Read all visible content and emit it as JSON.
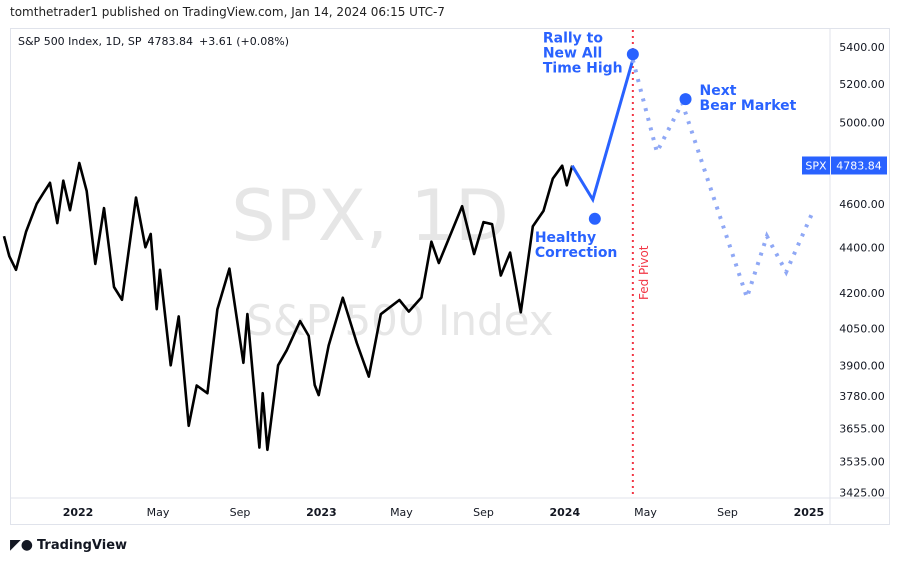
{
  "header": {
    "published": "tomthetrader1 published on TradingView.com, Jan 14, 2024 06:15 UTC-7"
  },
  "legend": {
    "name": "S&P 500 Index, 1D, SP",
    "price": "4783.84",
    "change": "+3.61 (+0.08%)"
  },
  "watermark": {
    "symbol": "SPX, 1D",
    "description": "S&P 500 Index"
  },
  "footer": {
    "brand": "TradingView"
  },
  "colors": {
    "price": "#000000",
    "projection": "#2962ff",
    "forecast": "#8fa8f5",
    "pivot": "#f23645",
    "label_bg": "#2962ff"
  },
  "chart_data": {
    "type": "line",
    "scale": "log",
    "ylim": [
      3380,
      5560
    ],
    "y_ticks": [
      "5400.00",
      "5200.00",
      "5000.00",
      "4600.00",
      "4400.00",
      "4200.00",
      "4050.00",
      "3900.00",
      "3780.00",
      "3655.00",
      "3535.00",
      "3425.00"
    ],
    "x_ticks": [
      {
        "label": "2022",
        "date": "2022-01-01"
      },
      {
        "label": "May",
        "date": "2022-05-01"
      },
      {
        "label": "Sep",
        "date": "2022-09-01"
      },
      {
        "label": "2023",
        "date": "2023-01-01"
      },
      {
        "label": "May",
        "date": "2023-05-01"
      },
      {
        "label": "Sep",
        "date": "2023-09-01"
      },
      {
        "label": "2024",
        "date": "2024-01-01"
      },
      {
        "label": "May",
        "date": "2024-05-01"
      },
      {
        "label": "Sep",
        "date": "2024-09-01"
      },
      {
        "label": "2025",
        "date": "2025-01-01"
      }
    ],
    "last_price_label": {
      "symbol": "SPX",
      "value": "4783.84",
      "price": 4783.84
    },
    "price_series": [
      [
        "2021-09-12",
        4450
      ],
      [
        "2021-09-20",
        4360
      ],
      [
        "2021-09-30",
        4300
      ],
      [
        "2021-10-15",
        4470
      ],
      [
        "2021-10-31",
        4600
      ],
      [
        "2021-11-10",
        4650
      ],
      [
        "2021-11-20",
        4700
      ],
      [
        "2021-12-01",
        4510
      ],
      [
        "2021-12-10",
        4710
      ],
      [
        "2021-12-20",
        4570
      ],
      [
        "2022-01-03",
        4796
      ],
      [
        "2022-01-14",
        4660
      ],
      [
        "2022-01-27",
        4326
      ],
      [
        "2022-02-09",
        4580
      ],
      [
        "2022-02-24",
        4225
      ],
      [
        "2022-03-08",
        4170
      ],
      [
        "2022-03-29",
        4630
      ],
      [
        "2022-04-12",
        4400
      ],
      [
        "2022-04-20",
        4460
      ],
      [
        "2022-04-29",
        4130
      ],
      [
        "2022-05-04",
        4300
      ],
      [
        "2022-05-20",
        3900
      ],
      [
        "2022-06-01",
        4100
      ],
      [
        "2022-06-16",
        3666
      ],
      [
        "2022-06-28",
        3820
      ],
      [
        "2022-07-14",
        3790
      ],
      [
        "2022-07-29",
        4130
      ],
      [
        "2022-08-16",
        4305
      ],
      [
        "2022-09-06",
        3910
      ],
      [
        "2022-09-12",
        4110
      ],
      [
        "2022-09-30",
        3585
      ],
      [
        "2022-10-05",
        3790
      ],
      [
        "2022-10-12",
        3577
      ],
      [
        "2022-10-28",
        3900
      ],
      [
        "2022-11-10",
        3960
      ],
      [
        "2022-11-30",
        4080
      ],
      [
        "2022-12-13",
        4019
      ],
      [
        "2022-12-22",
        3822
      ],
      [
        "2022-12-28",
        3783
      ],
      [
        "2023-01-12",
        3980
      ],
      [
        "2023-02-02",
        4179
      ],
      [
        "2023-02-23",
        3990
      ],
      [
        "2023-03-13",
        3855
      ],
      [
        "2023-03-31",
        4109
      ],
      [
        "2023-04-28",
        4169
      ],
      [
        "2023-05-12",
        4120
      ],
      [
        "2023-05-31",
        4180
      ],
      [
        "2023-06-15",
        4425
      ],
      [
        "2023-06-26",
        4330
      ],
      [
        "2023-07-31",
        4589
      ],
      [
        "2023-08-18",
        4370
      ],
      [
        "2023-09-01",
        4515
      ],
      [
        "2023-09-14",
        4505
      ],
      [
        "2023-09-27",
        4275
      ],
      [
        "2023-10-11",
        4376
      ],
      [
        "2023-10-27",
        4117
      ],
      [
        "2023-11-14",
        4495
      ],
      [
        "2023-11-30",
        4567
      ],
      [
        "2023-12-14",
        4720
      ],
      [
        "2023-12-28",
        4783
      ],
      [
        "2024-01-04",
        4688
      ],
      [
        "2024-01-12",
        4783
      ]
    ],
    "projection": [
      [
        "2024-01-12",
        4783
      ],
      [
        "2024-02-12",
        4620
      ],
      [
        "2024-04-12",
        5330
      ]
    ],
    "forecast": [
      [
        "2024-04-12",
        5330
      ],
      [
        "2024-05-18",
        4850
      ],
      [
        "2024-06-25",
        5100
      ],
      [
        "2024-09-30",
        4180
      ],
      [
        "2024-10-30",
        4450
      ],
      [
        "2024-11-28",
        4290
      ],
      [
        "2025-01-05",
        4550
      ]
    ],
    "annotations": [
      {
        "text": "Rally to|New All|Time High",
        "date": "2024-04-12",
        "value": 5360,
        "dot": true
      },
      {
        "text": "Healthy|Correction",
        "date": "2024-02-15",
        "value": 4530,
        "dot": true
      },
      {
        "text": "Next|Bear Market",
        "date": "2024-06-30",
        "value": 5120,
        "dot": true
      },
      {
        "text": "Fed Pivot",
        "date": "2024-04-12",
        "value": null,
        "dot": false
      }
    ]
  }
}
